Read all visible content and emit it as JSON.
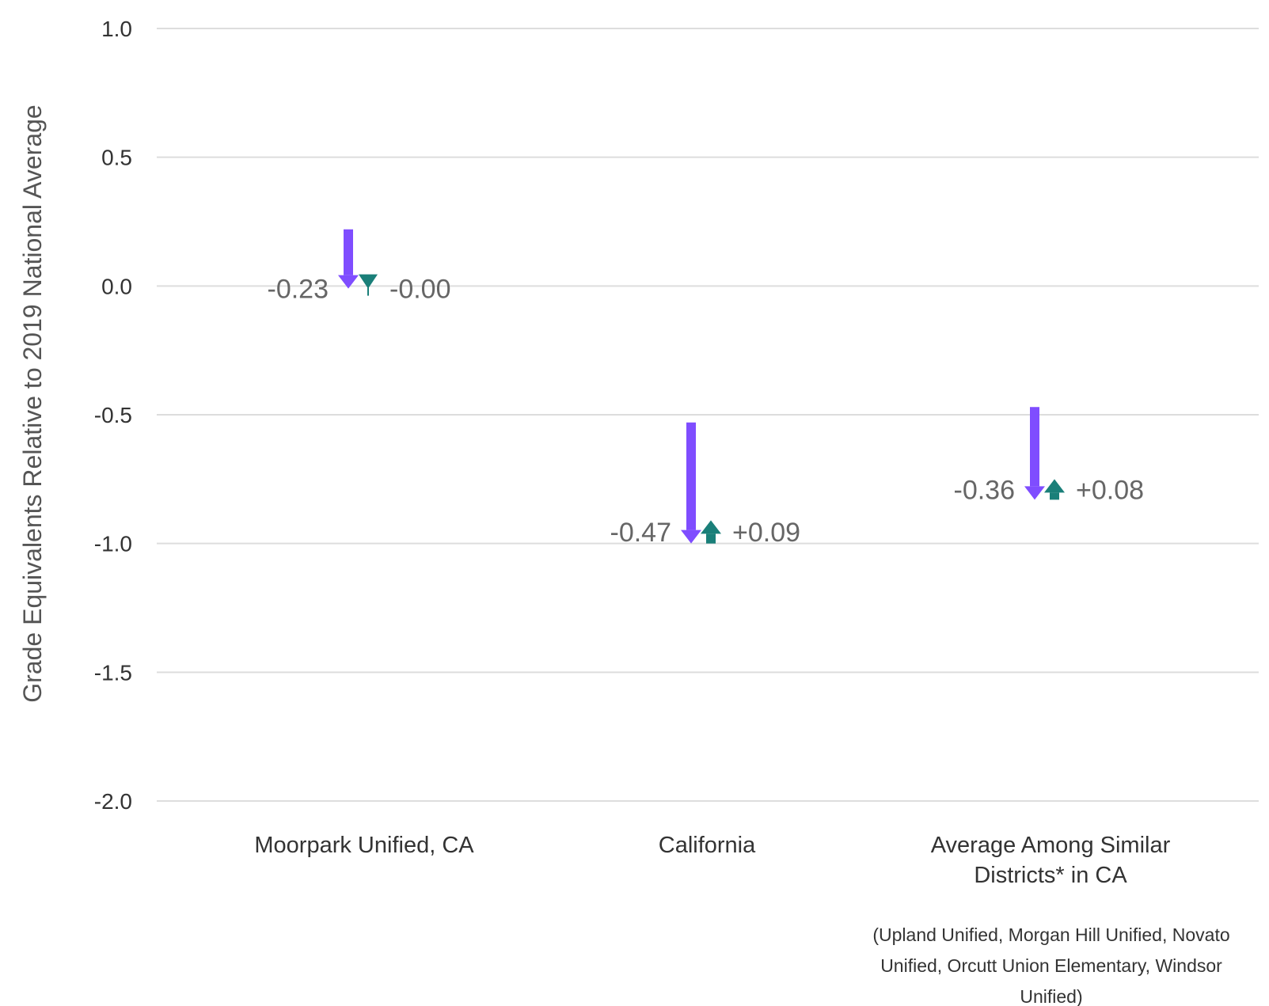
{
  "chart_data": {
    "type": "arrow",
    "ylabel": "Grade Equivalents Relative to 2019 National Average",
    "ylim": [
      -2.0,
      1.0
    ],
    "yticks": [
      {
        "value": 1.0,
        "label": "1.0"
      },
      {
        "value": 0.5,
        "label": "0.5"
      },
      {
        "value": 0.0,
        "label": "0.0"
      },
      {
        "value": -0.5,
        "label": "-0.5"
      },
      {
        "value": -1.0,
        "label": "-1.0"
      },
      {
        "value": -1.5,
        "label": "-1.5"
      },
      {
        "value": -2.0,
        "label": "-2.0"
      }
    ],
    "grid": true,
    "colors": {
      "first_change": "#7f4dff",
      "second_change": "#1a7f79",
      "grid": "#dddddd"
    },
    "groups": [
      {
        "category": [
          "Moorpark Unified, CA"
        ],
        "start": 0.22,
        "mid": -0.01,
        "end": -0.01,
        "change1": -0.23,
        "change1_label": "-0.23",
        "change2": -0.0,
        "change2_label": "-0.00"
      },
      {
        "category": [
          "California"
        ],
        "start": -0.53,
        "mid": -1.0,
        "end": -0.91,
        "change1": -0.47,
        "change1_label": "-0.47",
        "change2": 0.09,
        "change2_label": "+0.09"
      },
      {
        "category": [
          "Average Among Similar",
          "Districts* in CA"
        ],
        "start": -0.47,
        "mid": -0.83,
        "end": -0.75,
        "change1": -0.36,
        "change1_label": "-0.36",
        "change2": 0.08,
        "change2_label": "+0.08"
      }
    ],
    "footnote": [
      "(Upland Unified, Morgan Hill Unified, Novato",
      "Unified, Orcutt Union Elementary, Windsor",
      "Unified)"
    ]
  }
}
